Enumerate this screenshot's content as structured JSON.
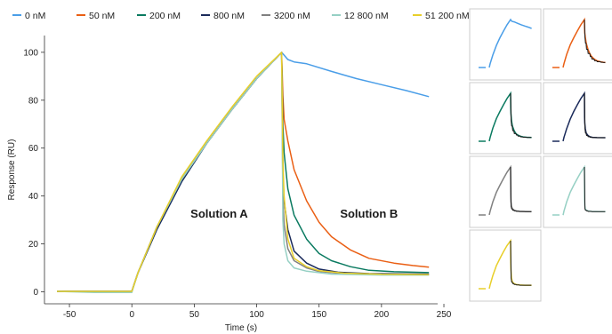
{
  "chart_data": {
    "type": "line",
    "xlabel": "Time (s)",
    "ylabel": "Response (RU)",
    "xlim": [
      -70,
      245
    ],
    "ylim": [
      -5,
      107
    ],
    "xticks": [
      -50,
      0,
      50,
      100,
      150,
      200,
      250
    ],
    "yticks": [
      0,
      20,
      40,
      60,
      80,
      100
    ],
    "legend": {
      "placement": "top"
    },
    "grid": false,
    "annotations": [
      {
        "text": "Solution A",
        "x": 70,
        "y": 31
      },
      {
        "text": "Solution B",
        "x": 190,
        "y": 31
      }
    ],
    "association_end": 120,
    "series": [
      {
        "name": "0 nM",
        "color": "#4a9ee8",
        "baseline": 0.2,
        "points": [
          [
            -60,
            0.2
          ],
          [
            -30,
            0.2
          ],
          [
            0,
            0.2
          ],
          [
            5,
            8
          ],
          [
            20,
            26
          ],
          [
            40,
            46
          ],
          [
            60,
            62
          ],
          [
            80,
            76
          ],
          [
            100,
            89
          ],
          [
            120,
            100
          ],
          [
            125,
            97
          ],
          [
            130,
            96
          ],
          [
            140,
            95.2
          ],
          [
            160,
            92
          ],
          [
            180,
            89
          ],
          [
            200,
            86.5
          ],
          [
            220,
            84
          ],
          [
            238,
            81.5
          ]
        ]
      },
      {
        "name": "50 nM",
        "color": "#ea5f14",
        "baseline": 0.2,
        "points": [
          [
            -60,
            0.2
          ],
          [
            -30,
            0.2
          ],
          [
            0,
            0.2
          ],
          [
            5,
            8
          ],
          [
            20,
            27
          ],
          [
            40,
            47
          ],
          [
            60,
            62
          ],
          [
            80,
            76
          ],
          [
            100,
            89
          ],
          [
            120,
            100
          ],
          [
            121,
            82
          ],
          [
            122,
            72
          ],
          [
            125,
            63
          ],
          [
            130,
            51
          ],
          [
            140,
            38
          ],
          [
            150,
            29
          ],
          [
            160,
            23
          ],
          [
            175,
            17.5
          ],
          [
            190,
            14
          ],
          [
            210,
            12
          ],
          [
            225,
            11
          ],
          [
            238,
            10.3
          ]
        ]
      },
      {
        "name": "200 nM",
        "color": "#0a7a60",
        "baseline": 0.2,
        "points": [
          [
            -60,
            0.2
          ],
          [
            -30,
            0.2
          ],
          [
            0,
            0.2
          ],
          [
            5,
            8
          ],
          [
            20,
            27
          ],
          [
            40,
            47
          ],
          [
            60,
            62
          ],
          [
            80,
            76
          ],
          [
            100,
            89
          ],
          [
            120,
            100
          ],
          [
            121,
            70
          ],
          [
            122,
            58
          ],
          [
            125,
            43
          ],
          [
            130,
            32
          ],
          [
            140,
            22
          ],
          [
            150,
            16
          ],
          [
            160,
            13
          ],
          [
            175,
            10.5
          ],
          [
            190,
            9
          ],
          [
            210,
            8.4
          ],
          [
            238,
            8
          ]
        ]
      },
      {
        "name": "800 nM",
        "color": "#1a2a5a",
        "baseline": 0.2,
        "points": [
          [
            -60,
            0.2
          ],
          [
            -30,
            0.2
          ],
          [
            0,
            0.2
          ],
          [
            5,
            8
          ],
          [
            20,
            26
          ],
          [
            40,
            46
          ],
          [
            60,
            62
          ],
          [
            80,
            76
          ],
          [
            100,
            89
          ],
          [
            120,
            100
          ],
          [
            121,
            50
          ],
          [
            122,
            38
          ],
          [
            125,
            26
          ],
          [
            130,
            17
          ],
          [
            140,
            12
          ],
          [
            150,
            9.5
          ],
          [
            165,
            8.2
          ],
          [
            190,
            7.6
          ],
          [
            238,
            7.4
          ]
        ]
      },
      {
        "name": "3200 nM",
        "color": "#808080",
        "baseline": 0.2,
        "points": [
          [
            -60,
            0.2
          ],
          [
            -30,
            0.2
          ],
          [
            0,
            0.2
          ],
          [
            5,
            8
          ],
          [
            20,
            27
          ],
          [
            40,
            47
          ],
          [
            60,
            62
          ],
          [
            80,
            76
          ],
          [
            100,
            89
          ],
          [
            120,
            100
          ],
          [
            121,
            40
          ],
          [
            122,
            28
          ],
          [
            125,
            18
          ],
          [
            130,
            13
          ],
          [
            140,
            10
          ],
          [
            150,
            8.5
          ],
          [
            170,
            7.6
          ],
          [
            200,
            7.2
          ],
          [
            238,
            7.1
          ]
        ]
      },
      {
        "name": "12 800 nM",
        "color": "#96d0c4",
        "baseline": -0.3,
        "points": [
          [
            -60,
            0.2
          ],
          [
            -30,
            -0.3
          ],
          [
            0,
            -0.3
          ],
          [
            5,
            8
          ],
          [
            20,
            27
          ],
          [
            40,
            47
          ],
          [
            60,
            62
          ],
          [
            80,
            76
          ],
          [
            100,
            89
          ],
          [
            120,
            100
          ],
          [
            121,
            30
          ],
          [
            122,
            20
          ],
          [
            125,
            13
          ],
          [
            130,
            10
          ],
          [
            140,
            8.6
          ],
          [
            160,
            7.4
          ],
          [
            200,
            7
          ],
          [
            238,
            7
          ]
        ]
      },
      {
        "name": "51 200 nM",
        "color": "#e8cf2a",
        "baseline": 0.2,
        "points": [
          [
            -60,
            0.2
          ],
          [
            -30,
            0.2
          ],
          [
            0,
            0.2
          ],
          [
            5,
            8
          ],
          [
            20,
            27
          ],
          [
            40,
            48
          ],
          [
            60,
            63
          ],
          [
            80,
            77
          ],
          [
            100,
            90
          ],
          [
            120,
            100
          ],
          [
            121,
            55
          ],
          [
            122,
            40
          ],
          [
            125,
            22
          ],
          [
            130,
            14
          ],
          [
            140,
            10.5
          ],
          [
            150,
            8.8
          ],
          [
            170,
            7.8
          ],
          [
            200,
            7.3
          ],
          [
            238,
            7.2
          ]
        ]
      }
    ]
  }
}
